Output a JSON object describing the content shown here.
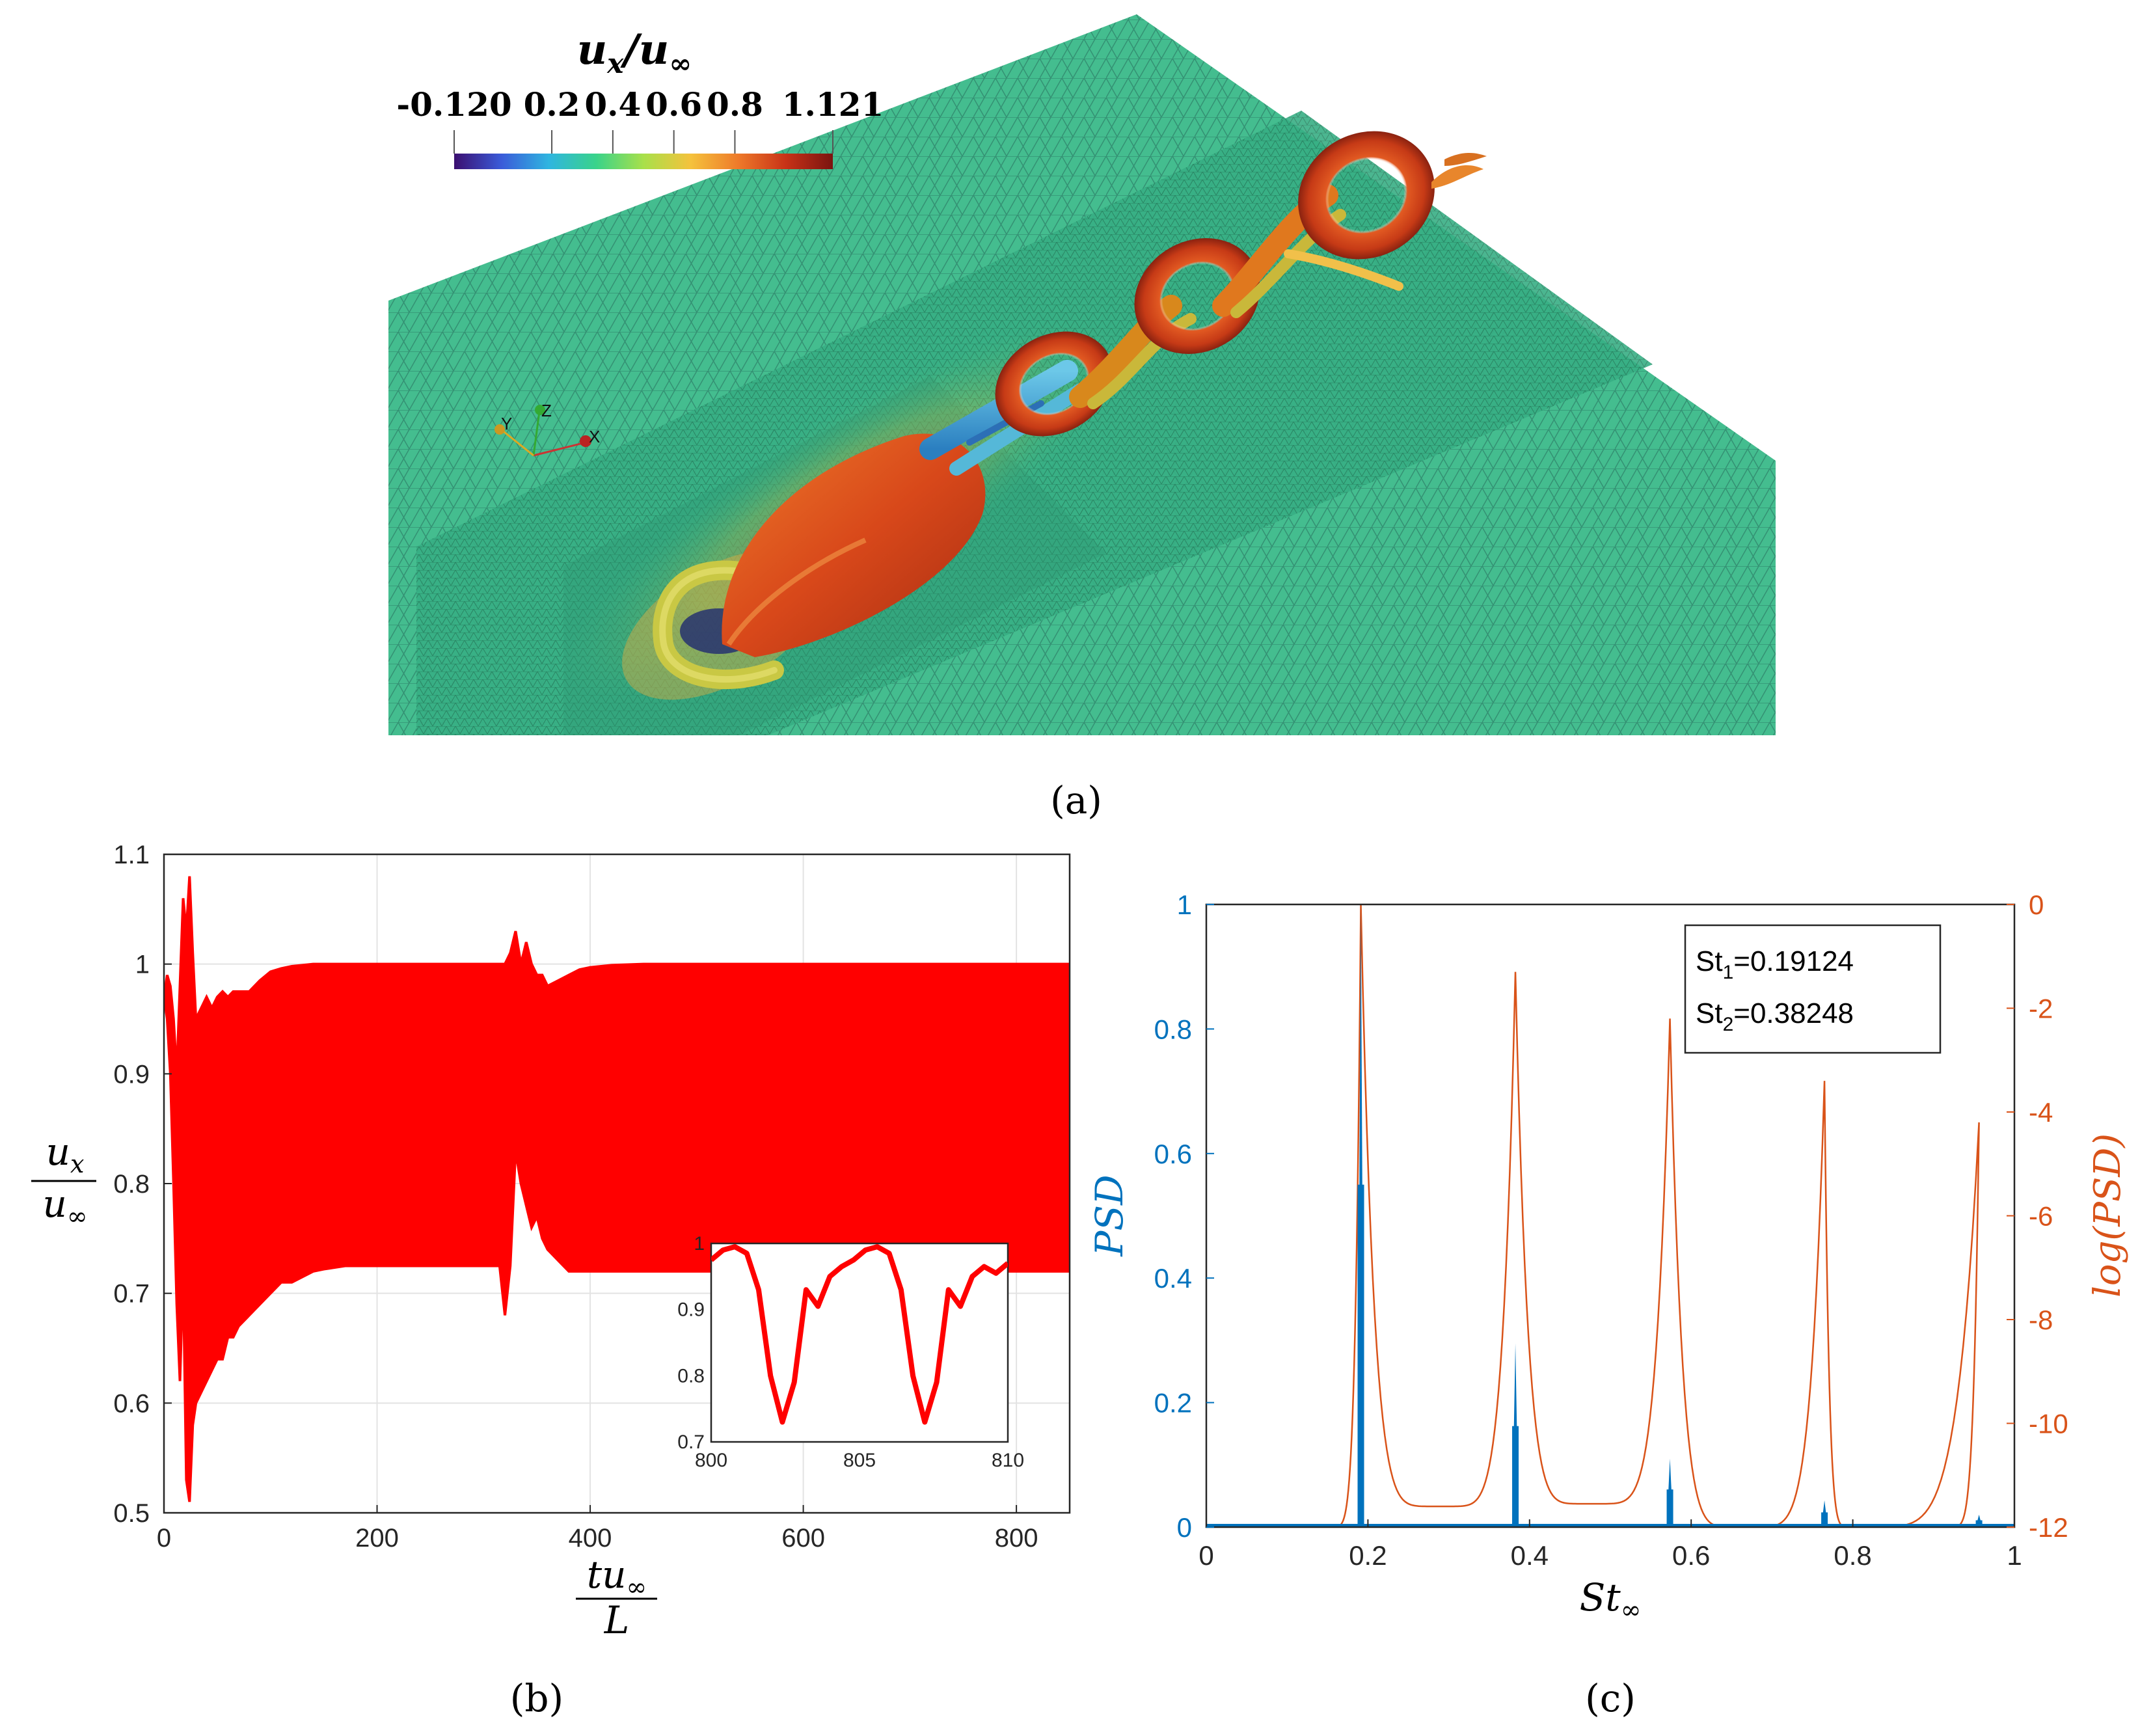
{
  "panel_a": {
    "caption": "(a)",
    "colorbar": {
      "title_num": "u",
      "title_sub": "x",
      "title_den": "u",
      "title_den_sub": "∞",
      "ticks": [
        "-0.120",
        "0.2",
        "0.4",
        "0.6",
        "0.8",
        "1.121"
      ],
      "colors": [
        "#3b0f70",
        "#3a5bd9",
        "#2fb5e0",
        "#39d38a",
        "#a8e04a",
        "#f5c23c",
        "#ee7a2a",
        "#c83217",
        "#7a1410"
      ]
    },
    "triad": {
      "x": "X",
      "y": "Y",
      "z": "Z"
    },
    "colors": {
      "mesh_face": "#3aba8a",
      "mesh_top": "#36b084",
      "mesh_dark": "#2a8c6c",
      "vortex_red": "#d0461c",
      "vortex_orange": "#e8862c",
      "vortex_blue": "#3e9fd6",
      "vortex_yellow": "#c9c844"
    }
  },
  "chart_data": [
    {
      "id": "b",
      "type": "line",
      "caption": "(b)",
      "ylabel_num": "u",
      "ylabel_num_sub": "x",
      "ylabel_den": "u",
      "ylabel_den_sub": "∞",
      "xlabel_num": "tu",
      "xlabel_num_sub": "∞",
      "xlabel_den": "L",
      "xlim": [
        0,
        850
      ],
      "ylim": [
        0.5,
        1.1
      ],
      "xticks": [
        0,
        200,
        400,
        600,
        800
      ],
      "yticks": [
        0.5,
        0.6,
        0.7,
        0.8,
        0.9,
        1,
        1.1
      ],
      "xtick_labels": [
        "0",
        "200",
        "400",
        "600",
        "800"
      ],
      "ytick_labels": [
        "0.5",
        "0.6",
        "0.7",
        "0.8",
        "0.9",
        "1",
        "1.1"
      ],
      "grid": true,
      "line_color": "#ff0000",
      "series": [
        {
          "name": "upper envelope",
          "x": [
            0,
            3,
            6,
            9,
            12,
            15,
            18,
            21,
            24,
            27,
            30,
            35,
            40,
            45,
            50,
            55,
            60,
            65,
            70,
            80,
            90,
            100,
            110,
            120,
            130,
            140,
            150,
            170,
            200,
            250,
            300,
            315,
            320,
            325,
            330,
            335,
            340,
            345,
            350,
            355,
            360,
            370,
            380,
            390,
            400,
            420,
            450,
            500,
            600,
            700,
            800,
            850
          ],
          "y": [
            0.97,
            0.99,
            0.98,
            0.95,
            0.9,
            0.98,
            1.06,
            1.03,
            1.08,
            1.01,
            0.95,
            0.96,
            0.97,
            0.96,
            0.97,
            0.975,
            0.97,
            0.975,
            0.975,
            0.975,
            0.985,
            0.993,
            0.996,
            0.998,
            0.999,
            1.0,
            1.0,
            1.0,
            1.0,
            1.0,
            1.0,
            1.0,
            1.0,
            1.01,
            1.03,
            1.0,
            1.02,
            1.0,
            0.99,
            0.99,
            0.98,
            0.985,
            0.99,
            0.995,
            0.997,
            0.999,
            1.0,
            1.0,
            1.0,
            1.0,
            1.0,
            1.0
          ]
        },
        {
          "name": "lower envelope",
          "x": [
            0,
            3,
            6,
            9,
            12,
            15,
            18,
            21,
            24,
            27,
            30,
            35,
            40,
            45,
            50,
            55,
            60,
            65,
            70,
            80,
            90,
            100,
            110,
            120,
            130,
            140,
            150,
            170,
            200,
            250,
            300,
            315,
            320,
            325,
            330,
            335,
            340,
            345,
            350,
            355,
            360,
            370,
            380,
            390,
            400,
            420,
            450,
            500,
            600,
            700,
            800,
            850
          ],
          "y": [
            0.97,
            0.95,
            0.9,
            0.8,
            0.69,
            0.62,
            0.72,
            0.53,
            0.51,
            0.58,
            0.6,
            0.61,
            0.62,
            0.63,
            0.64,
            0.64,
            0.66,
            0.66,
            0.67,
            0.68,
            0.69,
            0.7,
            0.71,
            0.71,
            0.715,
            0.72,
            0.722,
            0.725,
            0.725,
            0.725,
            0.725,
            0.725,
            0.68,
            0.725,
            0.83,
            0.8,
            0.78,
            0.76,
            0.77,
            0.75,
            0.74,
            0.73,
            0.72,
            0.72,
            0.72,
            0.72,
            0.72,
            0.72,
            0.72,
            0.72,
            0.72,
            0.72
          ]
        }
      ]
    },
    {
      "id": "b_inset",
      "type": "line",
      "xlim": [
        800,
        810
      ],
      "ylim": [
        0.7,
        1.0
      ],
      "xticks": [
        800,
        805,
        810
      ],
      "yticks": [
        0.7,
        0.8,
        0.9,
        1
      ],
      "xtick_labels": [
        "800",
        "805",
        "810"
      ],
      "ytick_labels": [
        "0.7",
        "0.8",
        "0.9",
        "1"
      ],
      "line_color": "#ff0000",
      "x": [
        800,
        800.4,
        800.8,
        801.2,
        801.6,
        802.0,
        802.4,
        802.8,
        803.2,
        803.6,
        804.0,
        804.4,
        804.8,
        805.2,
        805.6,
        806.0,
        806.4,
        806.8,
        807.2,
        807.6,
        808.0,
        808.4,
        808.8,
        809.2,
        809.6,
        810.0
      ],
      "y": [
        0.975,
        0.99,
        0.995,
        0.985,
        0.93,
        0.8,
        0.73,
        0.79,
        0.93,
        0.905,
        0.95,
        0.965,
        0.975,
        0.99,
        0.995,
        0.985,
        0.93,
        0.8,
        0.73,
        0.79,
        0.93,
        0.905,
        0.95,
        0.965,
        0.955,
        0.97
      ]
    },
    {
      "id": "c",
      "type": "line",
      "caption": "(c)",
      "xlabel": "St",
      "xlabel_sub": "∞",
      "ylabel_left": "PSD",
      "ylabel_right": "log(PSD)",
      "xlim": [
        0,
        1
      ],
      "ylim_left": [
        0,
        1
      ],
      "ylim_right": [
        -12,
        0
      ],
      "xticks": [
        0,
        0.2,
        0.4,
        0.6,
        0.8,
        1
      ],
      "xtick_labels": [
        "0",
        "0.2",
        "0.4",
        "0.6",
        "0.8",
        "1"
      ],
      "yticks_left": [
        0,
        0.2,
        0.4,
        0.6,
        0.8,
        1
      ],
      "ytick_labels_left": [
        "0",
        "0.2",
        "0.4",
        "0.6",
        "0.8",
        "1"
      ],
      "yticks_right": [
        -12,
        -10,
        -8,
        -6,
        -4,
        -2,
        0
      ],
      "ytick_labels_right": [
        "-12",
        "-10",
        "-8",
        "-6",
        "-4",
        "-2",
        "0"
      ],
      "colors": {
        "psd": "#0072bd",
        "log_psd": "#d95319"
      },
      "psd_peaks": {
        "x": [
          0.19124,
          0.38248,
          0.57372,
          0.76496,
          0.9562
        ],
        "y": [
          1.0,
          0.295,
          0.11,
          0.043,
          0.02
        ]
      },
      "log_psd_peaks": {
        "x": [
          0.19124,
          0.38248,
          0.57372,
          0.76496,
          0.9562
        ],
        "y": [
          0,
          -1.3,
          -2.2,
          -3.4,
          -4.2
        ]
      },
      "log_psd_troughs": {
        "x": [
          0.15,
          0.29,
          0.475,
          0.665,
          0.8,
          0.915
        ],
        "y": [
          -12,
          -11.6,
          -11.55,
          -12,
          -12,
          -12
        ]
      },
      "legend": [
        "St",
        "1",
        "=0.19124",
        "St",
        "2",
        "=0.38248"
      ],
      "legend_position": "top-right"
    }
  ]
}
